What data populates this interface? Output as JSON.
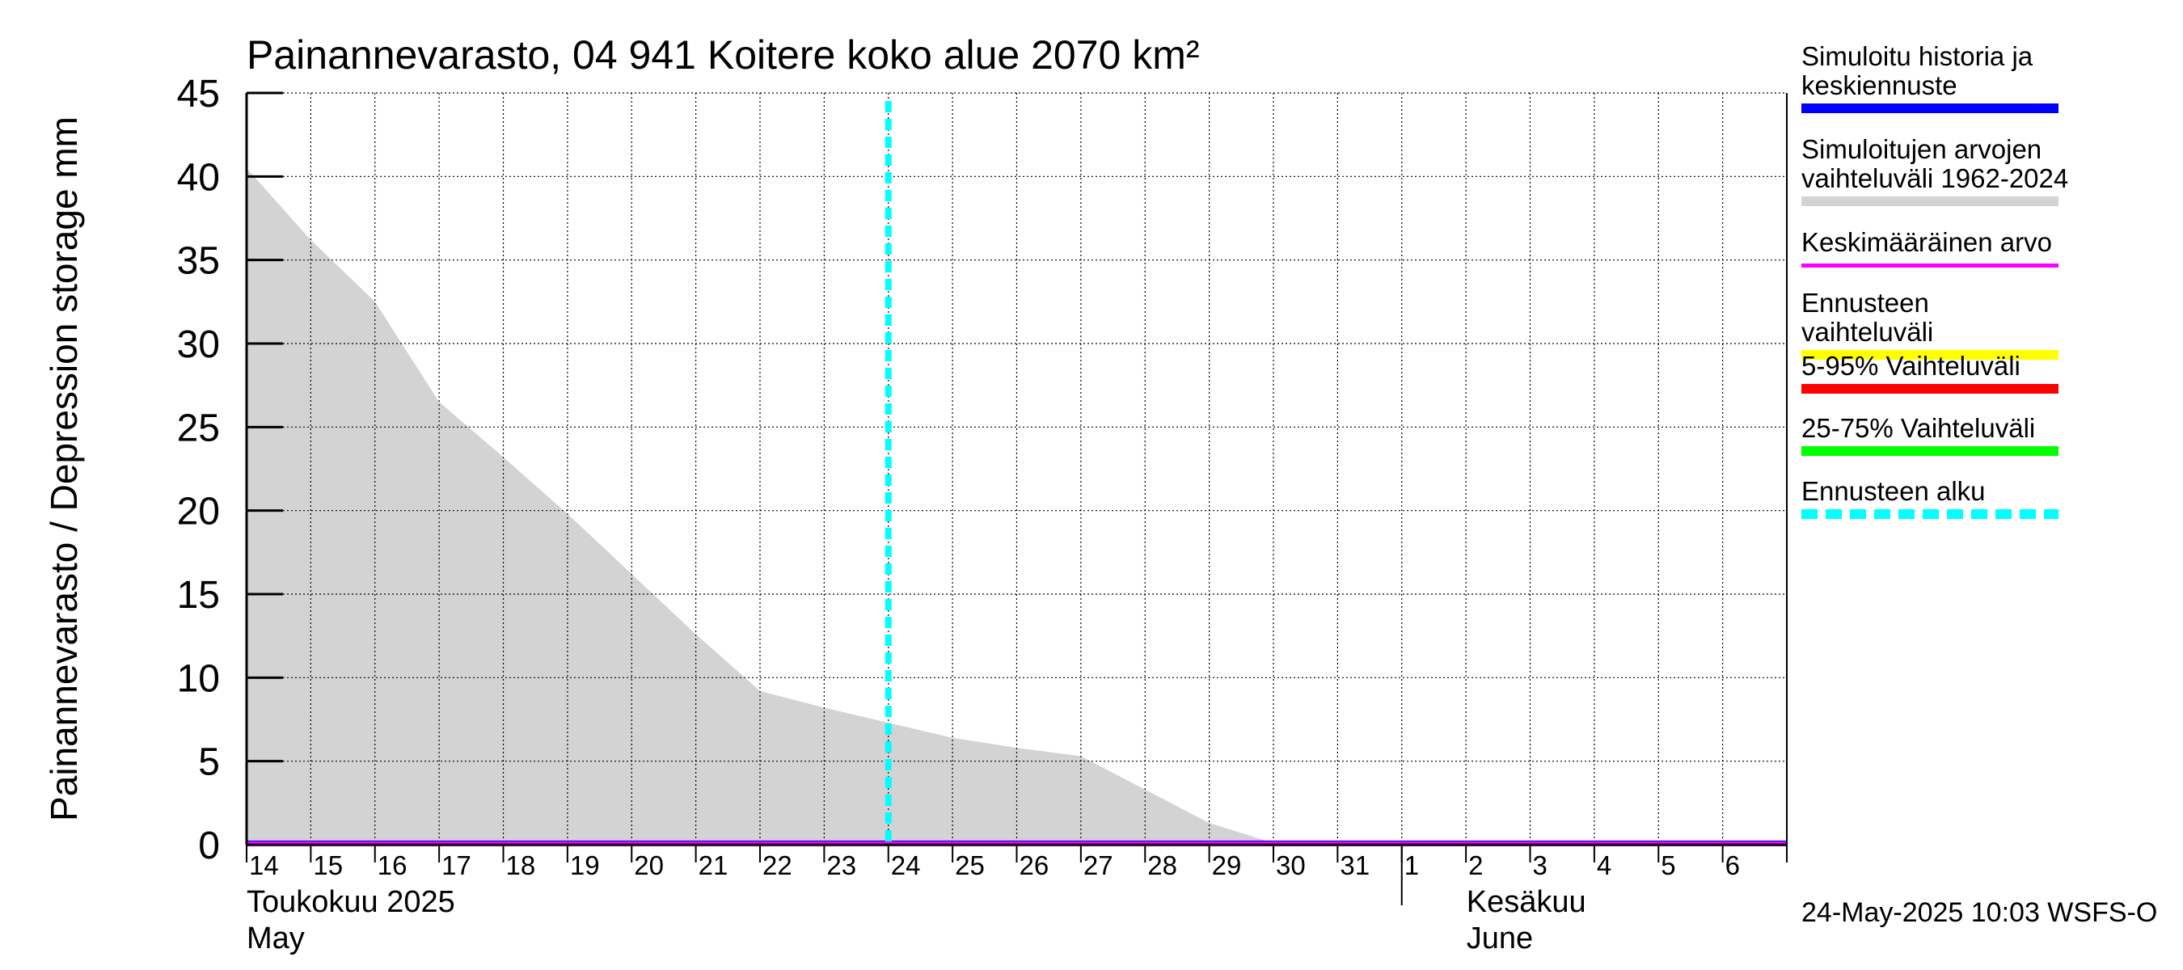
{
  "chart_data": {
    "type": "area",
    "title": "Painannevarasto, 04 941 Koitere koko alue 2070 km²",
    "ylabel": "Painannevarasto / Depression storage    mm",
    "ylim": [
      0,
      45
    ],
    "yticks": [
      0,
      5,
      10,
      15,
      20,
      25,
      30,
      35,
      40,
      45
    ],
    "x_tick_labels": [
      "14",
      "15",
      "16",
      "17",
      "18",
      "19",
      "20",
      "21",
      "22",
      "23",
      "24",
      "25",
      "26",
      "27",
      "28",
      "29",
      "30",
      "31",
      "1",
      "2",
      "3",
      "4",
      "5",
      "6"
    ],
    "x_day_range": [
      0,
      24
    ],
    "month_labels": [
      {
        "fi": "Toukokuu  2025",
        "en": "May",
        "start_day": 0
      },
      {
        "fi": "Kesäkuu",
        "en": "June",
        "start_day": 18
      }
    ],
    "series": [
      {
        "name": "Simuloitujen arvojen vaihteluväli 1962-2024",
        "kind": "band",
        "color": "#d3d3d3",
        "x": [
          0,
          1,
          2,
          3,
          4,
          5,
          6,
          7,
          8,
          9,
          10,
          11,
          12,
          13,
          14,
          15,
          16,
          17,
          18,
          24
        ],
        "upper": [
          40.5,
          36.2,
          32.5,
          26.5,
          23.2,
          19.8,
          16.2,
          12.6,
          9.2,
          8.2,
          7.3,
          6.4,
          5.8,
          5.3,
          3.3,
          1.3,
          0.1,
          0.05,
          0.05,
          0.05
        ],
        "lower": [
          0,
          0,
          0,
          0,
          0,
          0,
          0,
          0,
          0,
          0,
          0,
          0,
          0,
          0,
          0,
          0,
          0,
          0,
          0,
          0
        ]
      },
      {
        "name": "Simuloitu historia ja keskiennuste",
        "kind": "line",
        "color": "#0000ff",
        "x": [
          0,
          24
        ],
        "values": [
          0.1,
          0.1
        ]
      },
      {
        "name": "Keskimääräinen arvo",
        "kind": "line",
        "color": "#ff00ff",
        "x": [
          0,
          24
        ],
        "values": [
          0.05,
          0.05
        ]
      }
    ],
    "forecast_start_day": 10,
    "grid": true
  },
  "legend": {
    "items": [
      {
        "label": "Simuloitu historia ja keskiennuste",
        "color": "#0000ff",
        "style": "solid"
      },
      {
        "label": "Simuloitujen arvojen vaihteluväli 1962-2024",
        "color": "#d3d3d3",
        "style": "solid"
      },
      {
        "label": "Keskimääräinen arvo",
        "color": "#ff00ff",
        "style": "thin"
      },
      {
        "label": "Ennusteen vaihteluväli",
        "color": "#ffff00",
        "style": "solid"
      },
      {
        "label": "5-95% Vaihteluväli",
        "color": "#ff0000",
        "style": "solid"
      },
      {
        "label": "25-75% Vaihteluväli",
        "color": "#00ff00",
        "style": "solid"
      },
      {
        "label": "Ennusteen alku",
        "color": "#00ffff",
        "style": "dashed"
      }
    ]
  },
  "footer": {
    "stamp": "24-May-2025 10:03 WSFS-O"
  }
}
